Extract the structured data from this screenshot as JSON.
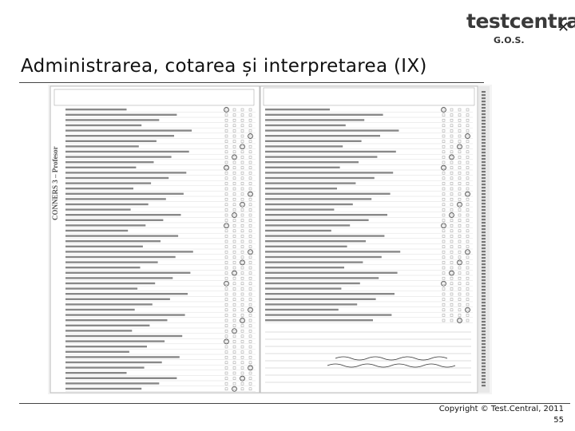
{
  "header": {
    "title": "Administrarea, cotarea și interpretarea (IX)"
  },
  "logo": {
    "name": "testcentral",
    "sub": "G.O.S."
  },
  "form": {
    "side_label": "CONNERS 3 – Profesor"
  },
  "footer": {
    "copyright": "Copyright © Test.Central, 2011",
    "page": "55"
  }
}
